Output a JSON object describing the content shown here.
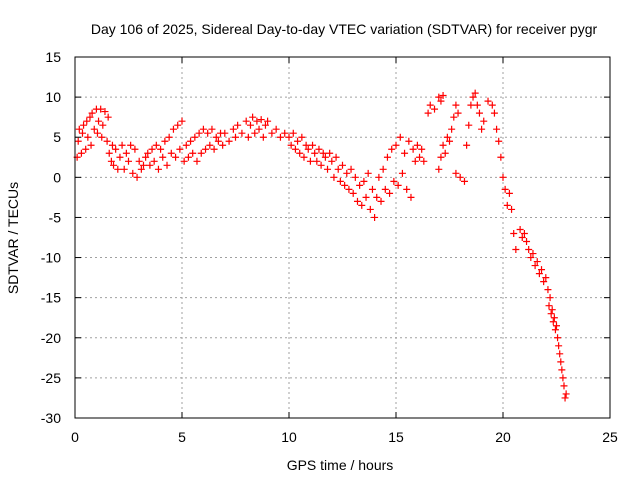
{
  "chart_data": {
    "type": "scatter",
    "title": "Day 106 of 2025, Sidereal Day-to-day VTEC variation (SDTVAR) for receiver pygr",
    "xlabel": "GPS time / hours",
    "ylabel": "SDTVAR / TECUs",
    "xlim": [
      0,
      25
    ],
    "ylim": [
      -30,
      15
    ],
    "xticks": [
      0,
      5,
      10,
      15,
      20,
      25
    ],
    "yticks": [
      -30,
      -25,
      -20,
      -15,
      -10,
      -5,
      0,
      5,
      10,
      15
    ],
    "grid": true,
    "marker": "+",
    "color": "#ff0000",
    "series": [
      {
        "name": "SDTVAR",
        "points": [
          [
            0.1,
            2.5
          ],
          [
            0.15,
            4.5
          ],
          [
            0.2,
            6.0
          ],
          [
            0.3,
            3.0
          ],
          [
            0.35,
            5.5
          ],
          [
            0.4,
            6.5
          ],
          [
            0.5,
            3.5
          ],
          [
            0.55,
            7.0
          ],
          [
            0.6,
            5.0
          ],
          [
            0.7,
            7.5
          ],
          [
            0.75,
            4.0
          ],
          [
            0.8,
            8.0
          ],
          [
            0.9,
            6.0
          ],
          [
            1.0,
            8.5
          ],
          [
            1.05,
            5.5
          ],
          [
            1.1,
            7.0
          ],
          [
            1.2,
            8.5
          ],
          [
            1.25,
            5.0
          ],
          [
            1.3,
            6.5
          ],
          [
            1.4,
            8.2
          ],
          [
            1.5,
            4.5
          ],
          [
            1.55,
            7.5
          ],
          [
            1.6,
            3.0
          ],
          [
            1.7,
            2.0
          ],
          [
            1.75,
            4.0
          ],
          [
            1.8,
            1.5
          ],
          [
            1.9,
            3.5
          ],
          [
            2.0,
            1.0
          ],
          [
            2.1,
            2.5
          ],
          [
            2.2,
            4.0
          ],
          [
            2.3,
            1.0
          ],
          [
            2.4,
            3.0
          ],
          [
            2.5,
            2.0
          ],
          [
            2.6,
            4.0
          ],
          [
            2.7,
            0.5
          ],
          [
            2.8,
            3.5
          ],
          [
            2.9,
            0.0
          ],
          [
            3.0,
            2.0
          ],
          [
            3.1,
            1.0
          ],
          [
            3.2,
            1.5
          ],
          [
            3.3,
            2.5
          ],
          [
            3.4,
            3.0
          ],
          [
            3.5,
            1.5
          ],
          [
            3.6,
            3.5
          ],
          [
            3.7,
            2.0
          ],
          [
            3.8,
            4.0
          ],
          [
            3.9,
            1.0
          ],
          [
            4.0,
            3.5
          ],
          [
            4.1,
            2.5
          ],
          [
            4.2,
            4.5
          ],
          [
            4.3,
            1.5
          ],
          [
            4.4,
            5.0
          ],
          [
            4.5,
            3.0
          ],
          [
            4.6,
            6.0
          ],
          [
            4.7,
            2.5
          ],
          [
            4.8,
            6.5
          ],
          [
            4.9,
            3.5
          ],
          [
            5.0,
            7.0
          ],
          [
            5.1,
            2.0
          ],
          [
            5.2,
            4.0
          ],
          [
            5.3,
            2.5
          ],
          [
            5.4,
            4.5
          ],
          [
            5.5,
            3.0
          ],
          [
            5.6,
            5.0
          ],
          [
            5.7,
            2.0
          ],
          [
            5.8,
            5.5
          ],
          [
            5.9,
            3.0
          ],
          [
            6.0,
            6.0
          ],
          [
            6.1,
            3.5
          ],
          [
            6.2,
            5.5
          ],
          [
            6.3,
            4.0
          ],
          [
            6.4,
            6.0
          ],
          [
            6.5,
            3.5
          ],
          [
            6.6,
            5.0
          ],
          [
            6.7,
            4.5
          ],
          [
            6.8,
            5.5
          ],
          [
            6.9,
            4.0
          ],
          [
            7.0,
            5.5
          ],
          [
            7.2,
            4.5
          ],
          [
            7.4,
            6.0
          ],
          [
            7.5,
            5.0
          ],
          [
            7.6,
            6.5
          ],
          [
            7.8,
            5.5
          ],
          [
            8.0,
            7.0
          ],
          [
            8.1,
            5.0
          ],
          [
            8.2,
            6.5
          ],
          [
            8.3,
            7.5
          ],
          [
            8.4,
            5.5
          ],
          [
            8.5,
            7.0
          ],
          [
            8.6,
            6.0
          ],
          [
            8.7,
            7.2
          ],
          [
            8.8,
            5.0
          ],
          [
            8.9,
            6.5
          ],
          [
            9.0,
            7.0
          ],
          [
            9.2,
            5.5
          ],
          [
            9.4,
            6.0
          ],
          [
            9.6,
            5.0
          ],
          [
            9.8,
            5.5
          ],
          [
            10.0,
            5.0
          ],
          [
            10.1,
            4.0
          ],
          [
            10.2,
            5.5
          ],
          [
            10.3,
            3.5
          ],
          [
            10.4,
            4.5
          ],
          [
            10.5,
            3.0
          ],
          [
            10.6,
            5.0
          ],
          [
            10.7,
            2.5
          ],
          [
            10.8,
            4.0
          ],
          [
            10.9,
            3.5
          ],
          [
            11.0,
            2.0
          ],
          [
            11.1,
            4.0
          ],
          [
            11.2,
            3.0
          ],
          [
            11.3,
            2.0
          ],
          [
            11.4,
            3.5
          ],
          [
            11.5,
            1.5
          ],
          [
            11.6,
            3.0
          ],
          [
            11.7,
            2.5
          ],
          [
            11.8,
            1.0
          ],
          [
            11.9,
            3.0
          ],
          [
            12.0,
            2.0
          ],
          [
            12.1,
            0.0
          ],
          [
            12.2,
            2.5
          ],
          [
            12.3,
            1.0
          ],
          [
            12.4,
            -0.5
          ],
          [
            12.5,
            1.5
          ],
          [
            12.6,
            -1.0
          ],
          [
            12.7,
            0.5
          ],
          [
            12.8,
            -1.5
          ],
          [
            12.9,
            1.0
          ],
          [
            13.0,
            -2.0
          ],
          [
            13.1,
            0.0
          ],
          [
            13.2,
            -3.0
          ],
          [
            13.3,
            -1.0
          ],
          [
            13.4,
            -3.5
          ],
          [
            13.5,
            -0.5
          ],
          [
            13.6,
            -2.5
          ],
          [
            13.7,
            0.5
          ],
          [
            13.8,
            -4.0
          ],
          [
            13.9,
            -1.5
          ],
          [
            14.0,
            -5.0
          ],
          [
            14.1,
            -2.5
          ],
          [
            14.2,
            0.0
          ],
          [
            14.3,
            -3.0
          ],
          [
            14.4,
            1.0
          ],
          [
            14.5,
            -1.5
          ],
          [
            14.6,
            2.5
          ],
          [
            14.7,
            -2.0
          ],
          [
            14.8,
            3.5
          ],
          [
            14.9,
            -0.5
          ],
          [
            15.0,
            4.0
          ],
          [
            15.1,
            -1.0
          ],
          [
            15.2,
            5.0
          ],
          [
            15.3,
            0.5
          ],
          [
            15.4,
            3.0
          ],
          [
            15.5,
            -1.5
          ],
          [
            15.6,
            4.5
          ],
          [
            15.7,
            -2.5
          ],
          [
            15.8,
            3.5
          ],
          [
            15.9,
            2.0
          ],
          [
            16.0,
            4.0
          ],
          [
            16.1,
            2.5
          ],
          [
            16.2,
            3.5
          ],
          [
            16.3,
            2.0
          ],
          [
            16.5,
            8.0
          ],
          [
            16.6,
            9.0
          ],
          [
            16.8,
            8.5
          ],
          [
            17.0,
            10.0
          ],
          [
            17.1,
            9.5
          ],
          [
            17.2,
            10.2
          ],
          [
            17.0,
            1.0
          ],
          [
            17.1,
            2.5
          ],
          [
            17.2,
            4.0
          ],
          [
            17.3,
            3.0
          ],
          [
            17.4,
            5.0
          ],
          [
            17.5,
            4.5
          ],
          [
            17.6,
            6.0
          ],
          [
            17.7,
            7.5
          ],
          [
            17.8,
            9.0
          ],
          [
            17.9,
            8.0
          ],
          [
            17.8,
            0.5
          ],
          [
            18.0,
            0.0
          ],
          [
            18.2,
            -0.5
          ],
          [
            18.3,
            4.0
          ],
          [
            18.4,
            6.5
          ],
          [
            18.5,
            9.0
          ],
          [
            18.6,
            10.0
          ],
          [
            18.7,
            10.5
          ],
          [
            18.8,
            9.0
          ],
          [
            18.9,
            8.0
          ],
          [
            19.0,
            6.0
          ],
          [
            19.1,
            7.0
          ],
          [
            19.3,
            9.5
          ],
          [
            19.5,
            9.0
          ],
          [
            19.6,
            8.0
          ],
          [
            19.7,
            6.0
          ],
          [
            19.8,
            4.5
          ],
          [
            19.9,
            2.5
          ],
          [
            20.0,
            0.0
          ],
          [
            20.1,
            -1.5
          ],
          [
            20.2,
            -3.5
          ],
          [
            20.3,
            -2.0
          ],
          [
            20.4,
            -4.0
          ],
          [
            20.5,
            -7.0
          ],
          [
            20.6,
            -9.0
          ],
          [
            20.8,
            -6.5
          ],
          [
            20.9,
            -7.5
          ],
          [
            21.0,
            -7.0
          ],
          [
            21.1,
            -8.0
          ],
          [
            21.2,
            -9.0
          ],
          [
            21.3,
            -10.0
          ],
          [
            21.4,
            -9.5
          ],
          [
            21.5,
            -11.0
          ],
          [
            21.6,
            -10.5
          ],
          [
            21.7,
            -12.0
          ],
          [
            21.8,
            -11.5
          ],
          [
            21.9,
            -13.0
          ],
          [
            22.0,
            -12.5
          ],
          [
            22.1,
            -14.0
          ],
          [
            22.15,
            -16.0
          ],
          [
            22.2,
            -15.0
          ],
          [
            22.25,
            -17.0
          ],
          [
            22.3,
            -16.5
          ],
          [
            22.35,
            -18.0
          ],
          [
            22.4,
            -17.5
          ],
          [
            22.45,
            -19.0
          ],
          [
            22.5,
            -18.5
          ],
          [
            22.55,
            -20.0
          ],
          [
            22.6,
            -21.0
          ],
          [
            22.65,
            -22.0
          ],
          [
            22.7,
            -23.0
          ],
          [
            22.75,
            -24.0
          ],
          [
            22.8,
            -25.0
          ],
          [
            22.85,
            -26.0
          ],
          [
            22.9,
            -27.5
          ],
          [
            22.95,
            -27.0
          ]
        ]
      }
    ]
  }
}
